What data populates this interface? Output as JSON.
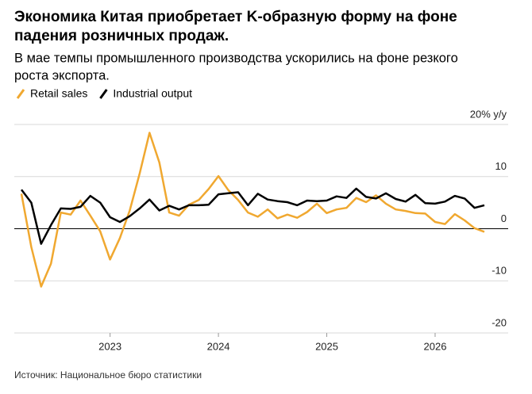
{
  "chart_data": {
    "type": "line",
    "title": [
      "Экономика Китая приобретает K-образную форму на фоне",
      "падения розничных продаж."
    ],
    "subtitle": [
      "В мае темпы промышленного производства ускорились на фоне резкого",
      "роста экспорта."
    ],
    "source": "Источник: Национальное бюро статистики",
    "categories": [
      null,
      null,
      null,
      null,
      null,
      null,
      null,
      null,
      null,
      "2023",
      null,
      null,
      null,
      null,
      null,
      null,
      null,
      null,
      null,
      null,
      "2024",
      null,
      null,
      null,
      null,
      null,
      null,
      null,
      null,
      null,
      null,
      "2025",
      null,
      null,
      null,
      null,
      null,
      null,
      null,
      null,
      null,
      null,
      "2026",
      null,
      null,
      null,
      null,
      null
    ],
    "series": [
      {
        "name": "Retail sales",
        "color": "#f0a830",
        "values": [
          6.7,
          -3.5,
          -11.1,
          -6.7,
          3.1,
          2.7,
          5.4,
          2.5,
          -0.5,
          -5.9,
          -1.8,
          3.5,
          10.6,
          18.4,
          12.7,
          3.1,
          2.5,
          4.6,
          5.5,
          7.6,
          10.1,
          7.4,
          5.5,
          3.1,
          2.3,
          3.7,
          2.0,
          2.7,
          2.1,
          3.2,
          4.8,
          3.0,
          3.7,
          4.0,
          5.9,
          5.1,
          6.4,
          4.8,
          3.7,
          3.4,
          3.0,
          2.9,
          1.3,
          0.9,
          2.8,
          1.6,
          0.1,
          -0.6
        ]
      },
      {
        "name": "Industrial output",
        "color": "#000000",
        "values": [
          7.5,
          5.0,
          -2.9,
          0.7,
          3.9,
          3.8,
          4.2,
          6.3,
          5.0,
          2.2,
          1.3,
          2.4,
          3.9,
          5.6,
          3.5,
          4.4,
          3.7,
          4.5,
          4.5,
          4.6,
          6.6,
          6.8,
          7.0,
          4.5,
          6.7,
          5.6,
          5.3,
          5.1,
          4.5,
          5.4,
          5.3,
          5.4,
          6.2,
          5.9,
          7.7,
          6.1,
          5.8,
          6.8,
          5.7,
          5.2,
          6.5,
          4.9,
          4.8,
          5.2,
          6.3,
          5.8,
          4.0,
          4.5
        ]
      }
    ],
    "ylim": [
      -20,
      20
    ],
    "yticks": [
      -20,
      -10,
      0,
      10,
      {
        "value": 20,
        "label": "20% y/y"
      }
    ],
    "grid": true
  }
}
